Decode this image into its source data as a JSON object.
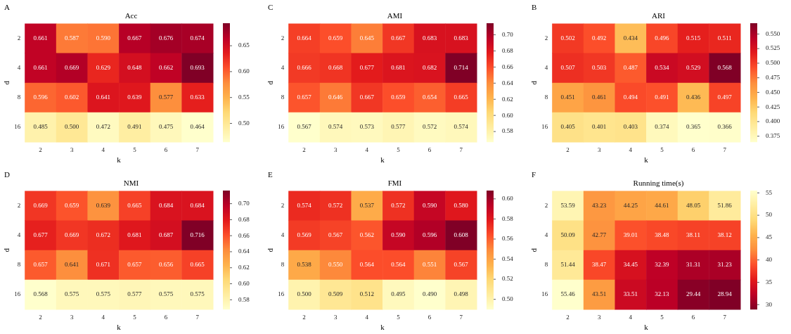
{
  "chart_data": [
    {
      "type": "heatmap",
      "title": "Acc",
      "xlabel": "k",
      "ylabel": "d",
      "annotations": [
        "A"
      ],
      "categories": [
        "2",
        "3",
        "4",
        "5",
        "6",
        "7"
      ],
      "y_categories": [
        "2",
        "4",
        "8",
        "16"
      ],
      "cells": [
        [
          0.661,
          0.587,
          0.59,
          0.667,
          0.676,
          0.674
        ],
        [
          0.661,
          0.669,
          0.629,
          0.648,
          0.662,
          0.693
        ],
        [
          0.596,
          0.602,
          0.641,
          0.639,
          0.577,
          0.633
        ],
        [
          0.485,
          0.5,
          0.472,
          0.491,
          0.475,
          0.464
        ]
      ],
      "cell_labels": [
        [
          "0.661",
          "0.587",
          "0.590",
          "0.667",
          "0.676",
          "0.674"
        ],
        [
          "0.661",
          "0.669",
          "0.629",
          "0.648",
          "0.662",
          "0.693"
        ],
        [
          "0.596",
          "0.602",
          "0.641",
          "0.639",
          "0.577",
          "0.633"
        ],
        [
          "0.485",
          "0.500",
          "0.472",
          "0.491",
          "0.475",
          "0.464"
        ]
      ],
      "clim": [
        0.464,
        0.693
      ],
      "cticks": [
        {
          "value": 0.5,
          "label": "0.50"
        },
        0.55,
        {
          "value": 0.6,
          "label": "0.60"
        },
        0.65
      ]
    },
    {
      "type": "heatmap",
      "title": "AMI",
      "xlabel": "k",
      "ylabel": "d",
      "annotations": [
        "C"
      ],
      "categories": [
        "2",
        "3",
        "4",
        "5",
        "6",
        "7"
      ],
      "y_categories": [
        "2",
        "4",
        "8",
        "16"
      ],
      "cells": [
        [
          0.664,
          0.659,
          0.645,
          0.667,
          0.683,
          0.683
        ],
        [
          0.666,
          0.668,
          0.677,
          0.681,
          0.682,
          0.714
        ],
        [
          0.657,
          0.646,
          0.667,
          0.659,
          0.654,
          0.665
        ],
        [
          0.567,
          0.574,
          0.573,
          0.577,
          0.572,
          0.574
        ]
      ],
      "data_labels": true,
      "clim": [
        0.567,
        0.714
      ],
      "cticks": [
        0.58,
        {
          "value": 0.6,
          "label": "0.60"
        },
        0.62,
        0.64,
        0.66,
        0.68,
        {
          "value": 0.7,
          "label": "0.70"
        }
      ]
    },
    {
      "type": "heatmap",
      "title": "ARI",
      "xlabel": "k",
      "ylabel": "d",
      "annotations": [
        "B"
      ],
      "categories": [
        "2",
        "3",
        "4",
        "5",
        "6",
        "7"
      ],
      "y_categories": [
        "2",
        "4",
        "8",
        "16"
      ],
      "cells": [
        [
          0.502,
          0.492,
          0.434,
          0.496,
          0.515,
          0.511
        ],
        [
          0.507,
          0.503,
          0.487,
          0.534,
          0.529,
          0.568
        ],
        [
          0.451,
          0.461,
          0.494,
          0.491,
          0.436,
          0.497
        ],
        [
          0.405,
          0.401,
          0.403,
          0.374,
          0.365,
          0.366
        ]
      ],
      "data_labels": true,
      "clim": [
        0.365,
        0.568
      ],
      "cticks": [
        0.375,
        {
          "value": 0.4,
          "label": "0.400"
        },
        0.425,
        {
          "value": 0.45,
          "label": "0.450"
        },
        0.475,
        {
          "value": 0.5,
          "label": "0.500"
        },
        0.525,
        {
          "value": 0.55,
          "label": "0.550"
        }
      ]
    },
    {
      "type": "heatmap",
      "title": "NMI",
      "xlabel": "k",
      "ylabel": "d",
      "annotations": [
        "D"
      ],
      "categories": [
        "2",
        "3",
        "4",
        "5",
        "6",
        "7"
      ],
      "y_categories": [
        "2",
        "4",
        "8",
        "16"
      ],
      "cells": [
        [
          0.669,
          0.659,
          0.639,
          0.665,
          0.684,
          0.684
        ],
        [
          0.677,
          0.669,
          0.672,
          0.681,
          0.687,
          0.716
        ],
        [
          0.657,
          0.641,
          0.671,
          0.657,
          0.656,
          0.665
        ],
        [
          0.568,
          0.575,
          0.575,
          0.577,
          0.575,
          0.575
        ]
      ],
      "data_labels": true,
      "clim": [
        0.568,
        0.716
      ],
      "cticks": [
        0.58,
        {
          "value": 0.6,
          "label": "0.60"
        },
        0.62,
        0.64,
        0.66,
        0.68,
        {
          "value": 0.7,
          "label": "0.70"
        }
      ]
    },
    {
      "type": "heatmap",
      "title": "FMI",
      "xlabel": "k",
      "ylabel": "d",
      "annotations": [
        "E"
      ],
      "categories": [
        "2",
        "3",
        "4",
        "5",
        "6",
        "7"
      ],
      "y_categories": [
        "2",
        "4",
        "8",
        "16"
      ],
      "cells": [
        [
          0.574,
          0.572,
          0.537,
          0.572,
          0.59,
          0.58
        ],
        [
          0.569,
          0.567,
          0.562,
          0.59,
          0.596,
          0.608
        ],
        [
          0.538,
          0.55,
          0.564,
          0.564,
          0.551,
          0.567
        ],
        [
          0.5,
          0.509,
          0.512,
          0.495,
          0.49,
          0.498
        ]
      ],
      "cell_labels": [
        [
          "0.574",
          "0.572",
          "0.537",
          "0.572",
          "0.590",
          "0.580"
        ],
        [
          "0.569",
          "0.567",
          "0.562",
          "0.590",
          "0.596",
          "0.608"
        ],
        [
          "0.538",
          "0.550",
          "0.564",
          "0.564",
          "0.551",
          "0.567"
        ],
        [
          "0.500",
          "0.509",
          "0.512",
          "0.495",
          "0.490",
          "0.498"
        ]
      ],
      "clim": [
        0.49,
        0.608
      ],
      "cticks": [
        {
          "value": 0.5,
          "label": "0.50"
        },
        0.52,
        0.54,
        0.56,
        0.58,
        {
          "value": 0.6,
          "label": "0.60"
        }
      ]
    },
    {
      "type": "heatmap",
      "title": "Running time(s)",
      "xlabel": "k",
      "ylabel": "d",
      "annotations": [
        "F"
      ],
      "categories": [
        "2",
        "3",
        "4",
        "5",
        "6",
        "7"
      ],
      "y_categories": [
        "2",
        "4",
        "8",
        "16"
      ],
      "cells": [
        [
          53.59,
          43.23,
          44.25,
          44.61,
          48.05,
          51.86
        ],
        [
          50.09,
          42.77,
          39.01,
          38.48,
          38.11,
          38.12
        ],
        [
          51.44,
          38.47,
          34.45,
          32.39,
          31.31,
          31.23
        ],
        [
          55.46,
          43.51,
          33.51,
          32.13,
          29.44,
          28.94
        ]
      ],
      "data_labels": true,
      "clim": [
        55.46,
        28.94
      ],
      "cticks": [
        30,
        35,
        40,
        45,
        50,
        55
      ]
    }
  ]
}
